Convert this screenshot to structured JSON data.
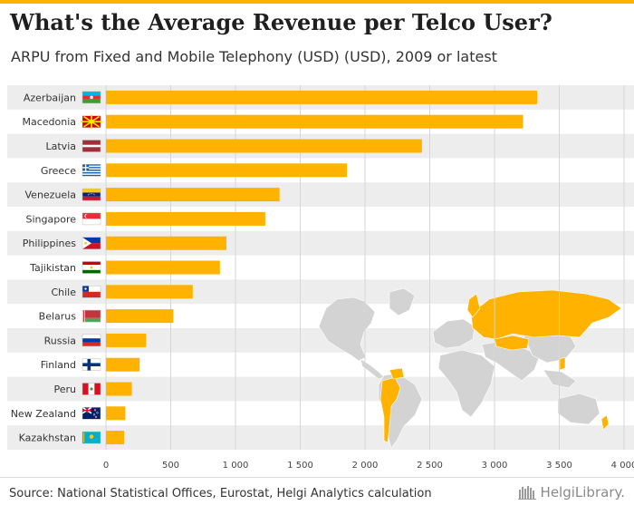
{
  "header": {
    "title": "What's the Average Revenue per Telco User?",
    "subtitle": "ARPU from Fixed and Mobile Telephony (USD) (USD), 2009 or latest"
  },
  "footer": {
    "source": "Source: National Statistical Offices, Eurostat, Helgi Analytics calculation",
    "logo_text": "HelgiLibrary."
  },
  "colors": {
    "accent": "#FFB300",
    "bar": "#FFB300",
    "band": "#EDEDED",
    "grid": "#D6D6D6",
    "map_land": "#D3D3D3",
    "map_highlight": "#FFB300"
  },
  "chart_data": {
    "type": "bar",
    "orientation": "horizontal",
    "title": "What's the Average Revenue per Telco User?",
    "subtitle": "ARPU from Fixed and Mobile Telephony (USD) (USD), 2009 or latest",
    "xlabel": "",
    "ylabel": "",
    "xlim": [
      0,
      4000
    ],
    "grid": true,
    "ticks": [
      0,
      500,
      1000,
      1500,
      2000,
      2500,
      3000,
      3500,
      4000
    ],
    "tick_labels": [
      "0",
      "500",
      "1 000",
      "1 500",
      "2 000",
      "2 500",
      "3 000",
      "3 500",
      "4 000"
    ],
    "categories": [
      "Azerbaijan",
      "Macedonia",
      "Latvia",
      "Greece",
      "Venezuela",
      "Singapore",
      "Philippines",
      "Tajikistan",
      "Chile",
      "Belarus",
      "Russia",
      "Finland",
      "Peru",
      "New Zealand",
      "Kazakhstan"
    ],
    "flags": [
      "azerbaijan-flag",
      "macedonia-flag",
      "latvia-flag",
      "greece-flag",
      "venezuela-flag",
      "singapore-flag",
      "philippines-flag",
      "tajikistan-flag",
      "chile-flag",
      "belarus-flag",
      "russia-flag",
      "finland-flag",
      "peru-flag",
      "new-zealand-flag",
      "kazakhstan-flag"
    ],
    "values": [
      3330,
      3220,
      2440,
      1860,
      1340,
      1230,
      930,
      880,
      670,
      520,
      310,
      260,
      200,
      150,
      140
    ]
  }
}
